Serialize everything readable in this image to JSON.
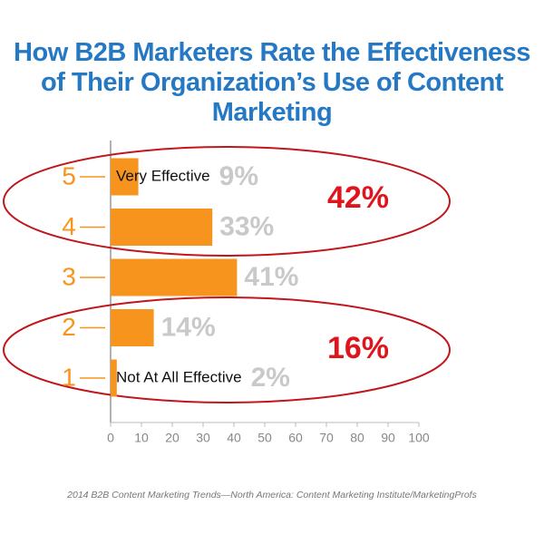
{
  "chart_data": {
    "type": "hbar",
    "title": "How B2B Marketers Rate the Effectiveness of Their Organization’s Use of Content Marketing",
    "categories": [
      "5",
      "4",
      "3",
      "2",
      "1"
    ],
    "values": [
      9,
      33,
      41,
      14,
      2
    ],
    "value_labels": [
      "9%",
      "33%",
      "41%",
      "14%",
      "2%"
    ],
    "bar_labels": [
      "Very Effective",
      null,
      null,
      null,
      "Not At All Effective"
    ],
    "annotations": [
      "42%",
      "16%"
    ],
    "color": "#f7941d",
    "xlim": [
      0,
      100
    ],
    "xticks": [
      0,
      10,
      20,
      30,
      40,
      50,
      60,
      70,
      80,
      90,
      100
    ],
    "source": "2014 B2B Content Marketing Trends—North America: Content Marketing Institute/MarketingProfs"
  }
}
